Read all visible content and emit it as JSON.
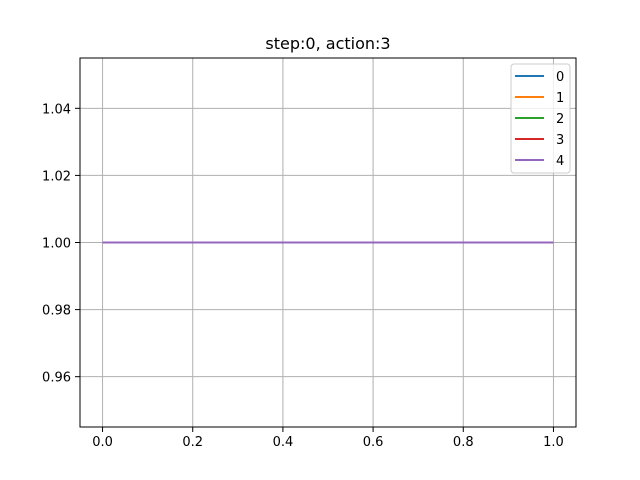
{
  "chart_data": {
    "type": "line",
    "title": "step:0, action:3",
    "xlabel": "",
    "ylabel": "",
    "xlim": [
      -0.05,
      1.05
    ],
    "ylim": [
      0.945,
      1.055
    ],
    "x_ticks": [
      0.0,
      0.2,
      0.4,
      0.6,
      0.8,
      1.0
    ],
    "x_tick_labels": [
      "0.0",
      "0.2",
      "0.4",
      "0.6",
      "0.8",
      "1.0"
    ],
    "y_ticks": [
      0.96,
      0.98,
      1.0,
      1.02,
      1.04
    ],
    "y_tick_labels": [
      "0.96",
      "0.98",
      "1.00",
      "1.02",
      "1.04"
    ],
    "grid": true,
    "legend_position": "top-right",
    "series": [
      {
        "name": "0",
        "color": "#1f77b4",
        "x": [
          0.0,
          1.0
        ],
        "values": [
          1.0,
          1.0
        ]
      },
      {
        "name": "1",
        "color": "#ff7f0e",
        "x": [
          0.0,
          1.0
        ],
        "values": [
          1.0,
          1.0
        ]
      },
      {
        "name": "2",
        "color": "#2ca02c",
        "x": [
          0.0,
          1.0
        ],
        "values": [
          1.0,
          1.0
        ]
      },
      {
        "name": "3",
        "color": "#d62728",
        "x": [
          0.0,
          1.0
        ],
        "values": [
          1.0,
          1.0
        ]
      },
      {
        "name": "4",
        "color": "#9467bd",
        "x": [
          0.0,
          1.0
        ],
        "values": [
          1.0,
          1.0
        ]
      }
    ]
  }
}
